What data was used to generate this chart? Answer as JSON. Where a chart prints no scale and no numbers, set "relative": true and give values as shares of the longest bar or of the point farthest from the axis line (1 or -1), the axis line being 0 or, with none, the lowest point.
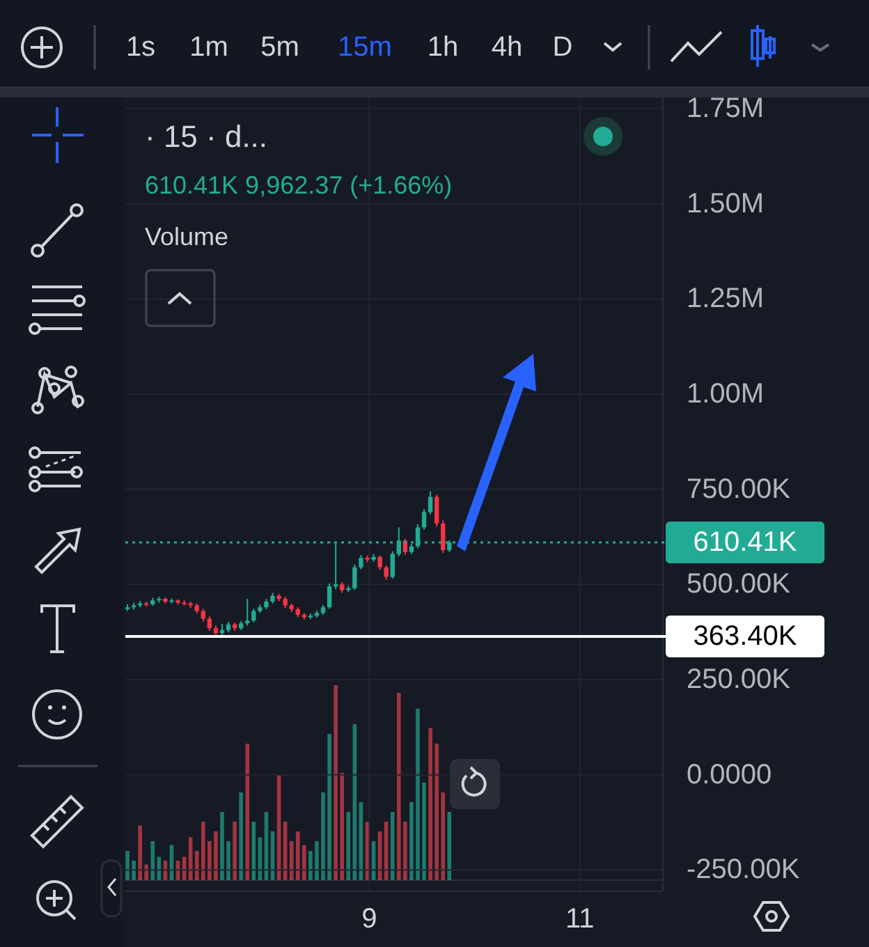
{
  "chart_data": [
    {
      "type": "candlestick",
      "title": "· 15 · d...",
      "subtitle": "610.41K 9,962.37 (+1.66%)",
      "annotations": [
        "Volume",
        "1s",
        "1m",
        "5m",
        "15m",
        "1h",
        "4h",
        "D"
      ],
      "x": [
        6.7,
        6.76,
        6.82,
        6.88,
        6.94,
        7.0,
        7.06,
        7.12,
        7.18,
        7.24,
        7.3,
        7.36,
        7.42,
        7.48,
        7.54,
        7.6,
        7.66,
        7.72,
        7.78,
        7.84,
        7.9,
        7.96,
        8.02,
        8.08,
        8.14,
        8.2,
        8.26,
        8.32,
        8.38,
        8.44,
        8.5,
        8.56,
        8.62,
        8.68,
        8.74,
        8.8,
        8.86,
        8.92,
        8.98,
        9.04,
        9.1,
        9.16,
        9.22,
        9.28,
        9.34,
        9.4,
        9.46,
        9.52,
        9.58,
        9.64,
        9.7,
        9.76
      ],
      "ohlc": [
        [
          435000,
          448000,
          430000,
          440000
        ],
        [
          440000,
          452000,
          434000,
          445000
        ],
        [
          445000,
          457000,
          440000,
          450000
        ],
        [
          450000,
          455000,
          442000,
          448000
        ],
        [
          448000,
          465000,
          444000,
          458000
        ],
        [
          458000,
          468000,
          452000,
          462000
        ],
        [
          462000,
          466000,
          450000,
          455000
        ],
        [
          455000,
          463000,
          450000,
          458000
        ],
        [
          458000,
          461000,
          447000,
          452000
        ],
        [
          452000,
          458000,
          444000,
          450000
        ],
        [
          450000,
          455000,
          438000,
          445000
        ],
        [
          445000,
          450000,
          424000,
          430000
        ],
        [
          430000,
          436000,
          402000,
          410000
        ],
        [
          410000,
          416000,
          378000,
          385000
        ],
        [
          385000,
          392000,
          363000,
          372000
        ],
        [
          372000,
          396000,
          366000,
          380000
        ],
        [
          380000,
          402000,
          374000,
          395000
        ],
        [
          395000,
          400000,
          378000,
          385000
        ],
        [
          385000,
          404000,
          380000,
          398000
        ],
        [
          398000,
          462000,
          392000,
          405000
        ],
        [
          405000,
          436000,
          400000,
          430000
        ],
        [
          430000,
          447000,
          425000,
          440000
        ],
        [
          440000,
          462000,
          435000,
          455000
        ],
        [
          455000,
          478000,
          450000,
          470000
        ],
        [
          470000,
          476000,
          456000,
          462000
        ],
        [
          462000,
          468000,
          438000,
          445000
        ],
        [
          445000,
          450000,
          428000,
          435000
        ],
        [
          435000,
          440000,
          414000,
          420000
        ],
        [
          420000,
          425000,
          408000,
          414000
        ],
        [
          414000,
          424000,
          409000,
          418000
        ],
        [
          418000,
          431000,
          413000,
          425000
        ],
        [
          425000,
          446000,
          420000,
          440000
        ],
        [
          440000,
          502000,
          436000,
          495000
        ],
        [
          495000,
          608000,
          488000,
          500000
        ],
        [
          500000,
          506000,
          478000,
          485000
        ],
        [
          485000,
          497000,
          480000,
          490000
        ],
        [
          490000,
          552000,
          486000,
          545000
        ],
        [
          545000,
          577000,
          540000,
          570000
        ],
        [
          570000,
          576000,
          558000,
          565000
        ],
        [
          565000,
          580000,
          560000,
          572000
        ],
        [
          572000,
          576000,
          538000,
          545000
        ],
        [
          545000,
          550000,
          512000,
          520000
        ],
        [
          520000,
          587000,
          515000,
          580000
        ],
        [
          580000,
          650000,
          574000,
          615000
        ],
        [
          615000,
          620000,
          578000,
          585000
        ],
        [
          585000,
          607000,
          580000,
          600000
        ],
        [
          600000,
          658000,
          595000,
          650000
        ],
        [
          650000,
          698000,
          644000,
          690000
        ],
        [
          690000,
          745000,
          684000,
          730000
        ],
        [
          730000,
          736000,
          652000,
          660000
        ],
        [
          660000,
          668000,
          583000,
          590000
        ],
        [
          590000,
          616000,
          585000,
          610410
        ]
      ],
      "colors": [
        "#22ab94",
        "#22ab94",
        "#22ab94",
        "#f23645",
        "#22ab94",
        "#22ab94",
        "#f23645",
        "#22ab94",
        "#f23645",
        "#f23645",
        "#f23645",
        "#f23645",
        "#f23645",
        "#f23645",
        "#f23645",
        "#22ab94",
        "#22ab94",
        "#f23645",
        "#22ab94",
        "#22ab94",
        "#22ab94",
        "#22ab94",
        "#22ab94",
        "#22ab94",
        "#f23645",
        "#f23645",
        "#f23645",
        "#f23645",
        "#f23645",
        "#22ab94",
        "#22ab94",
        "#22ab94",
        "#22ab94",
        "#22ab94",
        "#f23645",
        "#22ab94",
        "#22ab94",
        "#22ab94",
        "#f23645",
        "#22ab94",
        "#f23645",
        "#f23645",
        "#22ab94",
        "#22ab94",
        "#f23645",
        "#22ab94",
        "#22ab94",
        "#22ab94",
        "#22ab94",
        "#f23645",
        "#f23645",
        "#22ab94"
      ],
      "xlim": [
        6.68,
        11.79
      ],
      "xticks": [
        {
          "value": 9,
          "label": "9"
        },
        {
          "value": 11,
          "label": "11"
        }
      ],
      "ylim": [
        -306000,
        1779000
      ],
      "yticks": [
        {
          "value": -250000,
          "label": "-250.00K"
        },
        {
          "value": 0,
          "label": "0.0000"
        },
        {
          "value": 250000,
          "label": "250.00K"
        },
        {
          "value": 500000,
          "label": "500.00K"
        },
        {
          "value": 750000,
          "label": "750.00K"
        },
        {
          "value": 1000000,
          "label": "1.00M"
        },
        {
          "value": 1250000,
          "label": "1.25M"
        },
        {
          "value": 1500000,
          "label": "1.50M"
        },
        {
          "value": 1750000,
          "label": "1.75M"
        }
      ],
      "grid": true,
      "ref_lines": [
        {
          "axis": "y",
          "value": 610410,
          "label": "610.41K",
          "color": "#22ab94",
          "line_style": "dotted"
        },
        {
          "axis": "y",
          "value": 363400,
          "label": "363.40K",
          "color": "#ffffff",
          "line_style": "solid"
        }
      ]
    },
    {
      "type": "bar",
      "relative": true,
      "xlim": [
        6.68,
        11.79
      ],
      "x": [
        6.7,
        6.76,
        6.82,
        6.88,
        6.94,
        7.0,
        7.06,
        7.12,
        7.18,
        7.24,
        7.3,
        7.36,
        7.42,
        7.48,
        7.54,
        7.6,
        7.66,
        7.72,
        7.78,
        7.84,
        7.9,
        7.96,
        8.02,
        8.08,
        8.14,
        8.2,
        8.26,
        8.32,
        8.38,
        8.44,
        8.5,
        8.56,
        8.62,
        8.68,
        8.74,
        8.8,
        8.86,
        8.92,
        8.98,
        9.04,
        9.1,
        9.16,
        9.22,
        9.28,
        9.34,
        9.4,
        9.46,
        9.52,
        9.58,
        9.64,
        9.7,
        9.76
      ],
      "values": [
        0.15,
        0.1,
        0.28,
        0.08,
        0.2,
        0.12,
        0.1,
        0.18,
        0.1,
        0.12,
        0.22,
        0.15,
        0.3,
        0.2,
        0.25,
        0.35,
        0.2,
        0.3,
        0.45,
        0.7,
        0.3,
        0.22,
        0.35,
        0.25,
        0.54,
        0.3,
        0.2,
        0.25,
        0.18,
        0.15,
        0.2,
        0.45,
        0.75,
        1,
        0.55,
        0.35,
        0.8,
        0.4,
        0.3,
        0.2,
        0.25,
        0.3,
        0.35,
        0.96,
        0.3,
        0.4,
        0.88,
        0.5,
        0.78,
        0.7,
        0.45,
        0.35
      ],
      "colors": [
        "#1e7a6c",
        "#1e7a6c",
        "#a23540",
        "#a23540",
        "#1e7a6c",
        "#1e7a6c",
        "#a23540",
        "#1e7a6c",
        "#a23540",
        "#a23540",
        "#a23540",
        "#a23540",
        "#a23540",
        "#a23540",
        "#a23540",
        "#1e7a6c",
        "#1e7a6c",
        "#a23540",
        "#1e7a6c",
        "#a23540",
        "#1e7a6c",
        "#1e7a6c",
        "#1e7a6c",
        "#1e7a6c",
        "#a23540",
        "#a23540",
        "#a23540",
        "#a23540",
        "#a23540",
        "#1e7a6c",
        "#1e7a6c",
        "#1e7a6c",
        "#1e7a6c",
        "#a23540",
        "#a23540",
        "#1e7a6c",
        "#1e7a6c",
        "#1e7a6c",
        "#a23540",
        "#1e7a6c",
        "#a23540",
        "#a23540",
        "#1e7a6c",
        "#a23540",
        "#a23540",
        "#1e7a6c",
        "#1e7a6c",
        "#1e7a6c",
        "#a23540",
        "#a23540",
        "#a23540",
        "#1e7a6c"
      ]
    }
  ]
}
